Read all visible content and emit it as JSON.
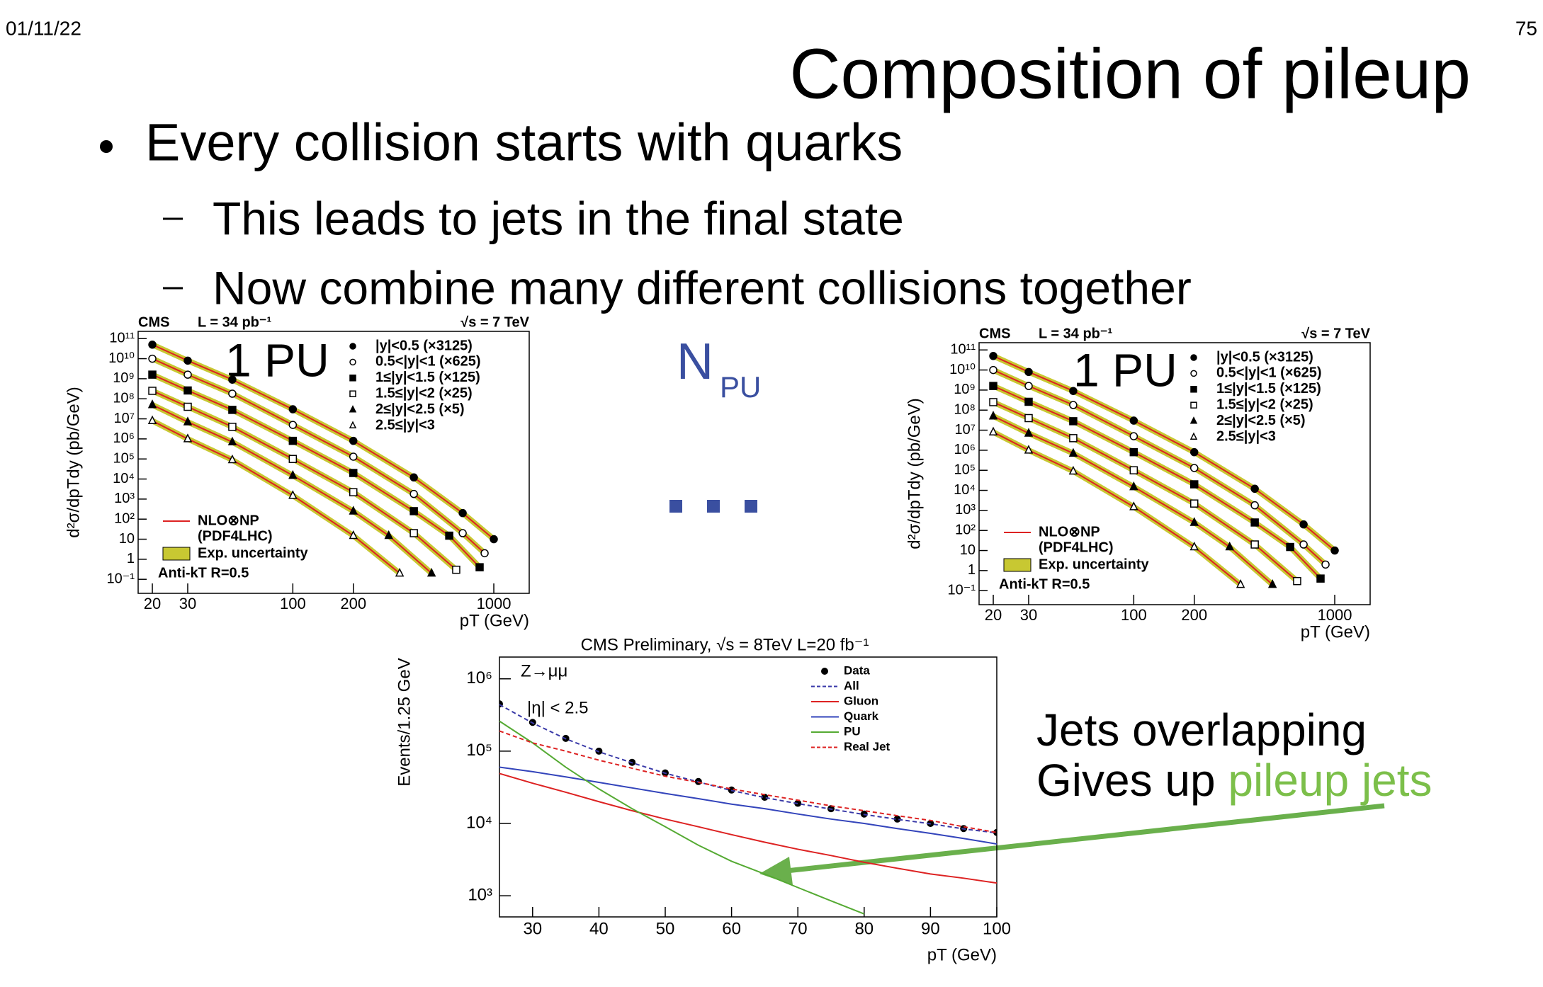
{
  "header": {
    "date": "01/11/22",
    "page": "75",
    "title": "Composition of pileup"
  },
  "bullets": {
    "main": "Every collision starts with quarks",
    "subs": [
      "This leads to jets in the final state",
      "Now combine many different collisions together"
    ]
  },
  "labels": {
    "left_pu": "1 PU",
    "right_pu": "1 PU",
    "npu_base": "N",
    "npu_sub": "PU",
    "callout_line1": "Jets overlapping",
    "callout_line2a": "Gives up ",
    "callout_line2b": "pileup jets"
  },
  "chart_data": [
    {
      "type": "line",
      "experiment": "CMS",
      "lumi": "L = 34 pb⁻¹",
      "energy": "√s = 7 TeV",
      "x_label": "pT (GeV)",
      "y_label": "d²σ/dpTdy (pb/GeV)",
      "log_x": true,
      "log_y": true,
      "xlim": [
        17,
        1500
      ],
      "ylim": [
        0.02,
        230000000000.0
      ],
      "xticks": [
        20,
        30,
        100,
        200,
        1000
      ],
      "yticks": [
        {
          "value": 0.1,
          "label": "10⁻¹"
        },
        1,
        10,
        {
          "value": 100,
          "label": "10²"
        },
        {
          "value": 1000,
          "label": "10³"
        },
        {
          "value": 10000,
          "label": "10⁴"
        },
        {
          "value": 100000,
          "label": "10⁵"
        },
        {
          "value": 1000000,
          "label": "10⁶"
        },
        {
          "value": 10000000,
          "label": "10⁷"
        },
        {
          "value": 100000000,
          "label": "10⁸"
        },
        {
          "value": 1000000000,
          "label": "10⁹"
        },
        {
          "value": 10000000000,
          "label": "10¹⁰"
        },
        {
          "value": 100000000000,
          "label": "10¹¹"
        }
      ],
      "series": [
        {
          "name": "|y|<0.5 (×3125)",
          "marker": "circle",
          "filled": true,
          "color": "#000000",
          "x": [
            20,
            30,
            50,
            100,
            200,
            400,
            700,
            1000
          ],
          "values": [
            50000000000.0,
            8000000000.0,
            900000000.0,
            30000000.0,
            800000.0,
            12000.0,
            200,
            10
          ]
        },
        {
          "name": "0.5<|y|<1 (×625)",
          "marker": "circle",
          "filled": false,
          "color": "#000000",
          "x": [
            20,
            30,
            50,
            100,
            200,
            400,
            700,
            900
          ],
          "values": [
            10000000000.0,
            1600000000.0,
            180000000.0,
            5000000.0,
            130000.0,
            1800,
            20,
            2
          ]
        },
        {
          "name": "1≤|y|<1.5 (×125)",
          "marker": "square",
          "filled": true,
          "color": "#000000",
          "x": [
            20,
            30,
            50,
            100,
            200,
            400,
            600,
            850
          ],
          "values": [
            1600000000.0,
            260000000.0,
            28000000.0,
            800000.0,
            20000.0,
            250,
            15,
            0.4
          ]
        },
        {
          "name": "1.5≤|y|<2 (×25)",
          "marker": "square",
          "filled": false,
          "color": "#000000",
          "x": [
            20,
            30,
            50,
            100,
            200,
            400,
            650
          ],
          "values": [
            250000000.0,
            40000000.0,
            4000000.0,
            100000.0,
            2200,
            20,
            0.3
          ]
        },
        {
          "name": "2≤|y|<2.5 (×5)",
          "marker": "triangle",
          "filled": true,
          "color": "#000000",
          "x": [
            20,
            30,
            50,
            100,
            200,
            300,
            490
          ],
          "values": [
            50000000.0,
            7000000.0,
            700000.0,
            15000.0,
            250,
            15,
            0.2
          ]
        },
        {
          "name": "2.5≤|y|<3",
          "marker": "triangle",
          "filled": false,
          "color": "#000000",
          "x": [
            20,
            30,
            50,
            100,
            200,
            340
          ],
          "values": [
            8000000.0,
            1000000.0,
            90000.0,
            1500,
            15,
            0.2
          ]
        }
      ],
      "theory": {
        "name": "NLO⊗NP",
        "note": "(PDF4LHC)",
        "color": "#dd2222"
      },
      "band": {
        "name": "Exp. uncertainty",
        "color": "#c8c832"
      },
      "annotation": "Anti-kT R=0.5"
    },
    {
      "type": "line",
      "title": "CMS Preliminary, √s = 8TeV L=20 fb⁻¹",
      "x_label": "pT (GeV)",
      "y_label": "Events/1.25 GeV",
      "annotations": [
        "Z→μμ",
        "|η|  < 2.5"
      ],
      "log_y": true,
      "xlim": [
        25,
        100
      ],
      "ylim": [
        510,
        2000000
      ],
      "xticks": [
        30,
        40,
        50,
        60,
        70,
        80,
        90,
        100
      ],
      "yticks": [
        {
          "value": 1000,
          "label": "10³"
        },
        {
          "value": 10000,
          "label": "10⁴"
        },
        {
          "value": 100000,
          "label": "10⁵"
        },
        {
          "value": 1000000,
          "label": "10⁶"
        }
      ],
      "x": [
        25,
        30,
        35,
        40,
        45,
        50,
        55,
        60,
        65,
        70,
        75,
        80,
        85,
        90,
        95,
        100
      ],
      "series": [
        {
          "name": "Data",
          "style": "dots",
          "color": "#000000",
          "values": [
            450000,
            250000,
            150000,
            100000,
            70000,
            50000,
            38000,
            29000,
            23000,
            19000,
            16000,
            13500,
            11500,
            10000,
            8500,
            7500
          ]
        },
        {
          "name": "All",
          "style": "dashed",
          "color": "#3a3aa8",
          "values": [
            440000,
            245000,
            148000,
            98000,
            69000,
            49500,
            37500,
            28500,
            22800,
            18800,
            15800,
            13300,
            11400,
            9900,
            8400,
            7400
          ]
        },
        {
          "name": "Gluon",
          "style": "solid",
          "color": "#dd2222",
          "values": [
            49000,
            36000,
            27000,
            20000,
            15000,
            11500,
            9000,
            7000,
            5500,
            4400,
            3600,
            2900,
            2400,
            2000,
            1750,
            1500
          ]
        },
        {
          "name": "Quark",
          "style": "solid",
          "color": "#3344bb",
          "values": [
            60000,
            52000,
            44000,
            37000,
            31000,
            26000,
            22000,
            18500,
            16000,
            13500,
            11500,
            10000,
            8500,
            7300,
            6200,
            5200
          ]
        },
        {
          "name": "PU",
          "style": "solid",
          "color": "#55aa33",
          "values": [
            260000,
            130000,
            60000,
            30000,
            16000,
            9000,
            5000,
            3000,
            2000,
            1300,
            850,
            560,
            null,
            null,
            null,
            null
          ]
        },
        {
          "name": "Real Jet",
          "style": "dashed",
          "color": "#dd2222",
          "values": [
            190000,
            130000,
            100000,
            75000,
            58000,
            45000,
            37000,
            30000,
            25000,
            21000,
            17500,
            15000,
            12800,
            11000,
            9000,
            7500
          ]
        }
      ]
    }
  ]
}
